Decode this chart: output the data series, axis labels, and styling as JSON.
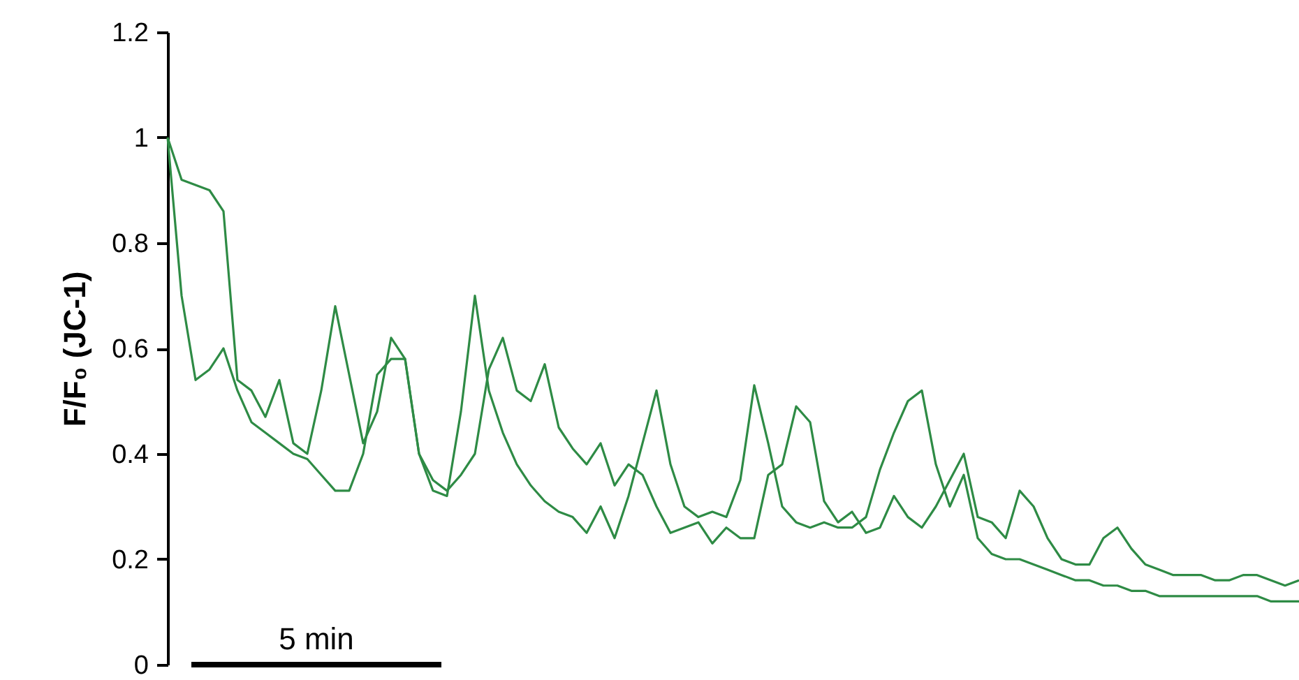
{
  "chart_data": {
    "type": "line",
    "ylabel": "F/F₀ (JC-1)",
    "ylim": [
      0,
      1.2
    ],
    "yticks": [
      0,
      0.2,
      0.4,
      0.6,
      0.8,
      1,
      1.2
    ],
    "annotations": [
      "5 min"
    ],
    "categories": [
      null,
      null,
      null,
      null,
      null,
      null,
      null,
      null,
      null,
      null,
      null,
      null,
      null,
      null,
      null,
      null,
      null,
      null,
      null,
      null,
      null,
      null,
      null,
      null,
      null,
      null,
      null,
      null,
      null,
      null,
      null,
      null,
      null,
      null,
      null,
      null,
      null,
      null,
      null,
      null,
      null,
      null,
      null,
      null,
      null,
      null,
      null,
      null,
      null,
      null,
      null,
      null,
      null,
      null,
      null,
      null,
      null,
      null,
      null,
      null,
      null,
      null,
      null,
      null,
      null,
      null,
      null,
      null,
      null,
      null,
      null,
      null,
      null,
      null,
      null,
      null,
      null,
      null,
      null,
      null,
      null,
      null
    ],
    "series": [
      {
        "color": "#2e8b45",
        "values": [
          1.0,
          0.92,
          0.91,
          0.9,
          0.86,
          0.54,
          0.52,
          0.47,
          0.54,
          0.42,
          0.4,
          0.52,
          0.68,
          0.55,
          0.42,
          0.48,
          0.62,
          0.58,
          0.4,
          0.33,
          0.32,
          0.48,
          0.7,
          0.52,
          0.44,
          0.38,
          0.34,
          0.31,
          0.29,
          0.28,
          0.25,
          0.3,
          0.24,
          0.32,
          0.42,
          0.52,
          0.38,
          0.3,
          0.28,
          0.29,
          0.28,
          0.35,
          0.53,
          0.42,
          0.3,
          0.27,
          0.26,
          0.27,
          0.26,
          0.26,
          0.28,
          0.37,
          0.44,
          0.5,
          0.52,
          0.38,
          0.3,
          0.36,
          0.24,
          0.21,
          0.2,
          0.2,
          0.19,
          0.18,
          0.17,
          0.16,
          0.16,
          0.15,
          0.15,
          0.14,
          0.14,
          0.13,
          0.13,
          0.13,
          0.13,
          0.13,
          0.13,
          0.13,
          0.13,
          0.12,
          0.12,
          0.12
        ]
      },
      {
        "color": "#2e8b45",
        "values": [
          1.0,
          0.7,
          0.54,
          0.56,
          0.6,
          0.52,
          0.46,
          0.44,
          0.42,
          0.4,
          0.39,
          0.36,
          0.33,
          0.33,
          0.4,
          0.55,
          0.58,
          0.58,
          0.4,
          0.35,
          0.33,
          0.36,
          0.4,
          0.56,
          0.62,
          0.52,
          0.5,
          0.57,
          0.45,
          0.41,
          0.38,
          0.42,
          0.34,
          0.38,
          0.36,
          0.3,
          0.25,
          0.26,
          0.27,
          0.23,
          0.26,
          0.24,
          0.24,
          0.36,
          0.38,
          0.49,
          0.46,
          0.31,
          0.27,
          0.29,
          0.25,
          0.26,
          0.32,
          0.28,
          0.26,
          0.3,
          0.35,
          0.4,
          0.28,
          0.27,
          0.24,
          0.33,
          0.3,
          0.24,
          0.2,
          0.19,
          0.19,
          0.24,
          0.26,
          0.22,
          0.19,
          0.18,
          0.17,
          0.17,
          0.17,
          0.16,
          0.16,
          0.17,
          0.17,
          0.16,
          0.15,
          0.16
        ]
      }
    ]
  }
}
